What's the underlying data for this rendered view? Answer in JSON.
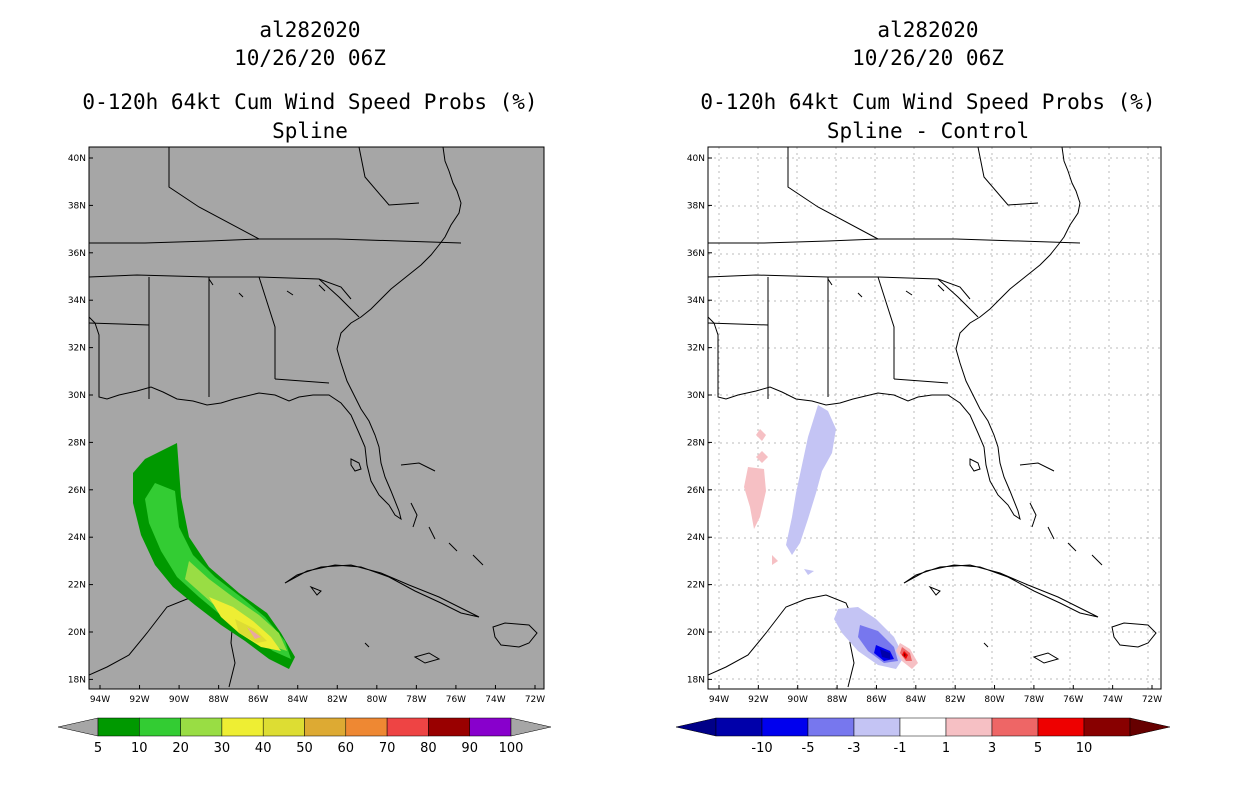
{
  "left": {
    "storm_id": "al282020",
    "datetime": "10/26/20 06Z",
    "product": "0-120h 64kt Cum Wind Speed Probs (%)",
    "run": "Spline",
    "background": "#a6a6a6",
    "lat_labels": [
      "40N",
      "38N",
      "36N",
      "34N",
      "32N",
      "30N",
      "28N",
      "26N",
      "24N",
      "22N",
      "20N",
      "18N"
    ],
    "lon_labels": [
      "94W",
      "92W",
      "90W",
      "88W",
      "86W",
      "84W",
      "82W",
      "80W",
      "78W",
      "76W",
      "74W",
      "72W"
    ],
    "colorbar": {
      "colors": [
        "#009900",
        "#33cc33",
        "#99dd44",
        "#eeee33",
        "#dddd33",
        "#ddaa33",
        "#ee8833",
        "#ee4444",
        "#990000",
        "#8800cc"
      ],
      "labels": [
        "5",
        "10",
        "20",
        "30",
        "40",
        "50",
        "60",
        "70",
        "80",
        "90",
        "100"
      ]
    }
  },
  "right": {
    "storm_id": "al282020",
    "datetime": "10/26/20 06Z",
    "product": "0-120h 64kt Cum Wind Speed Probs (%)",
    "run": "Spline - Control",
    "background": "#ffffff",
    "lat_labels": [
      "40N",
      "38N",
      "36N",
      "34N",
      "32N",
      "30N",
      "28N",
      "26N",
      "24N",
      "22N",
      "20N",
      "18N"
    ],
    "lon_labels": [
      "94W",
      "92W",
      "90W",
      "88W",
      "86W",
      "84W",
      "82W",
      "80W",
      "78W",
      "76W",
      "74W",
      "72W"
    ],
    "colorbar": {
      "colors": [
        "#0000aa",
        "#0000ee",
        "#7777ee",
        "#c4c4f4",
        "#ffffff",
        "#f6c0c4",
        "#ee6666",
        "#ee0000",
        "#880000"
      ],
      "labels": [
        "-10",
        "-5",
        "-3",
        "-1",
        "1",
        "3",
        "5",
        "10"
      ]
    }
  }
}
